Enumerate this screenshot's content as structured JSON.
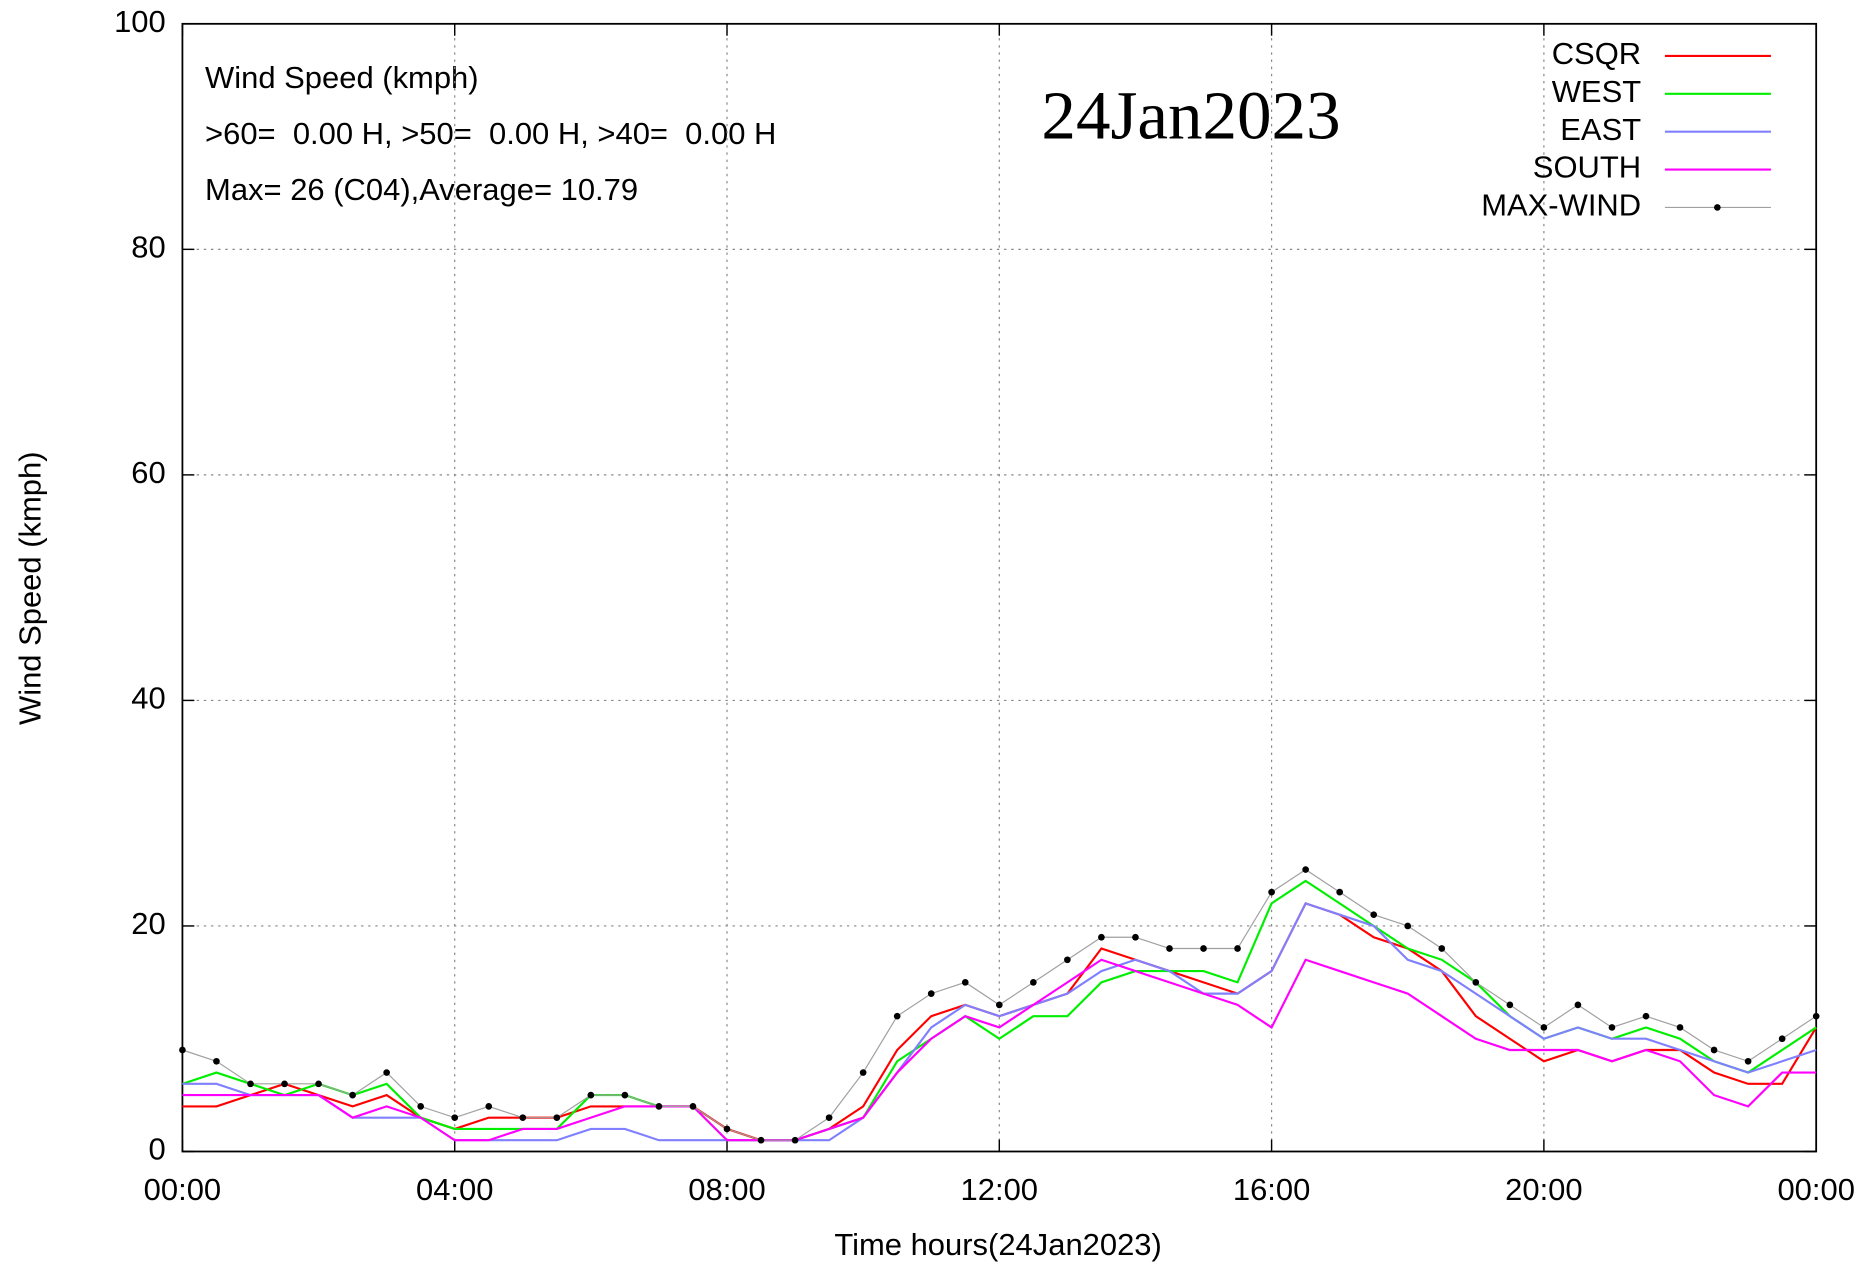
{
  "chart_data": {
    "type": "line",
    "annotations": [
      "Wind Speed (kmph)",
      ">60=  0.00 H, >50=  0.00 H, >40=  0.00 H",
      "Max= 26 (C04),Average= 10.79"
    ],
    "date_label": "24Jan2023",
    "x_label": "Time hours(24Jan2023)",
    "y_label": "Wind Speed (kmph)",
    "x": [
      0,
      0.5,
      1,
      1.5,
      2,
      2.5,
      3,
      3.5,
      4,
      4.5,
      5,
      5.5,
      6,
      6.5,
      7,
      7.5,
      8,
      8.5,
      9,
      9.5,
      10,
      10.5,
      11,
      11.5,
      12,
      12.5,
      13,
      13.5,
      14,
      14.5,
      15,
      15.5,
      16,
      16.5,
      17,
      17.5,
      18,
      18.5,
      19,
      19.5,
      20,
      20.5,
      21,
      21.5,
      22,
      22.5,
      23,
      23.5,
      24
    ],
    "series": [
      {
        "name": "CSQR",
        "color": "#ff0000",
        "values": [
          4,
          4,
          5,
          6,
          5,
          4,
          5,
          3,
          2,
          3,
          3,
          3,
          4,
          4,
          4,
          4,
          2,
          1,
          1,
          2,
          4,
          9,
          12,
          13,
          12,
          13,
          14,
          18,
          17,
          16,
          15,
          14,
          16,
          22,
          21,
          19,
          18,
          16,
          12,
          10,
          8,
          9,
          8,
          9,
          9,
          7,
          6,
          6,
          11
        ]
      },
      {
        "name": "WEST",
        "color": "#00ee00",
        "values": [
          6,
          7,
          6,
          5,
          6,
          5,
          6,
          3,
          2,
          2,
          2,
          2,
          5,
          5,
          4,
          4,
          1,
          1,
          1,
          2,
          3,
          8,
          10,
          12,
          10,
          12,
          12,
          15,
          16,
          16,
          16,
          15,
          22,
          24,
          22,
          20,
          18,
          17,
          15,
          12,
          10,
          11,
          10,
          11,
          10,
          8,
          7,
          9,
          11
        ]
      },
      {
        "name": "EAST",
        "color": "#8080ff",
        "values": [
          6,
          6,
          5,
          5,
          5,
          3,
          3,
          3,
          1,
          1,
          1,
          1,
          2,
          2,
          1,
          1,
          1,
          1,
          1,
          1,
          3,
          7,
          11,
          13,
          12,
          13,
          14,
          16,
          17,
          16,
          14,
          14,
          16,
          22,
          21,
          20,
          17,
          16,
          14,
          12,
          10,
          11,
          10,
          10,
          9,
          8,
          7,
          8,
          9
        ]
      },
      {
        "name": "SOUTH",
        "color": "#ff00ff",
        "values": [
          5,
          5,
          5,
          5,
          5,
          3,
          4,
          3,
          1,
          1,
          2,
          2,
          3,
          4,
          4,
          4,
          1,
          1,
          1,
          2,
          3,
          7,
          10,
          12,
          11,
          13,
          15,
          17,
          16,
          15,
          14,
          13,
          11,
          17,
          16,
          15,
          14,
          12,
          10,
          9,
          9,
          9,
          8,
          9,
          8,
          5,
          4,
          7,
          7
        ]
      },
      {
        "name": "MAX-WIND",
        "color": "#000000",
        "line_color": "#a0a0a0",
        "markers": true,
        "values": [
          9,
          8,
          6,
          6,
          6,
          5,
          7,
          4,
          3,
          4,
          3,
          3,
          5,
          5,
          4,
          4,
          2,
          1,
          1,
          3,
          7,
          12,
          14,
          15,
          13,
          15,
          17,
          19,
          19,
          18,
          18,
          18,
          23,
          25,
          23,
          21,
          20,
          18,
          15,
          13,
          11,
          13,
          11,
          12,
          11,
          9,
          8,
          10,
          12
        ]
      }
    ],
    "xlim": [
      0,
      24
    ],
    "xticks": [
      {
        "value": 0,
        "label": "00:00"
      },
      {
        "value": 4,
        "label": "04:00"
      },
      {
        "value": 8,
        "label": "08:00"
      },
      {
        "value": 12,
        "label": "12:00"
      },
      {
        "value": 16,
        "label": "16:00"
      },
      {
        "value": 20,
        "label": "20:00"
      },
      {
        "value": 24,
        "label": "00:00"
      }
    ],
    "ylim": [
      0,
      100
    ],
    "yticks": [
      0,
      20,
      40,
      60,
      80,
      100
    ],
    "grid": true,
    "legend": "top-right"
  }
}
